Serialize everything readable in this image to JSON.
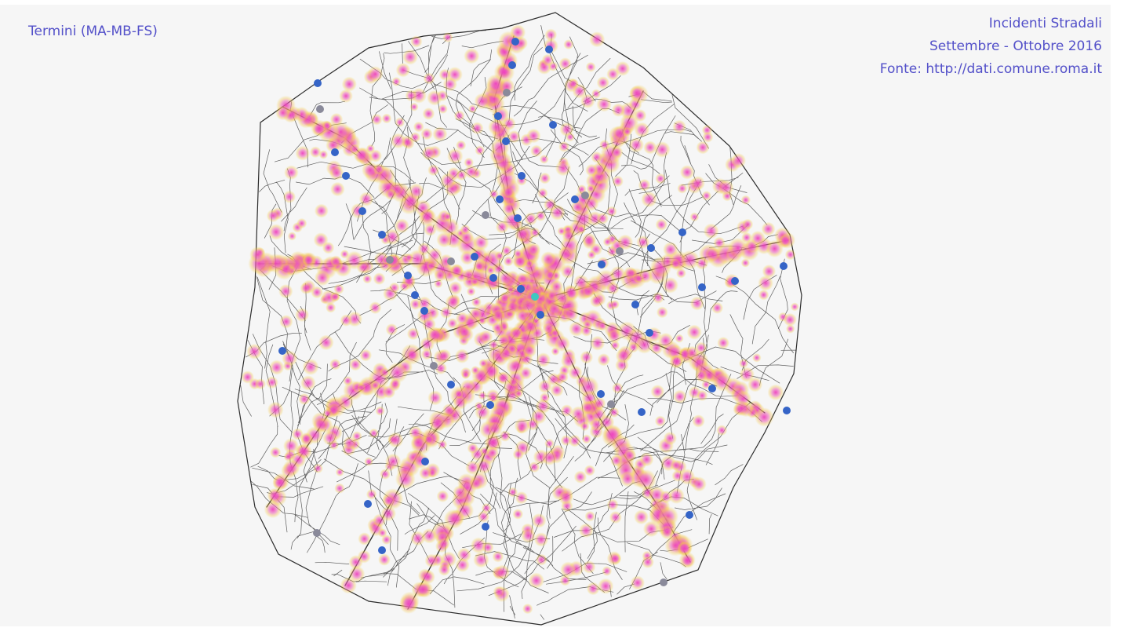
{
  "selected_station_label": "Termini (MA-MB-FS)",
  "title": {
    "line1": "Incidenti Stradali",
    "line2": "Settembre - Ottobre 2016",
    "source": "Fonte: http://dati.comune.roma.it"
  },
  "colors": {
    "background": "#f6f6f6",
    "text": "#5350c9",
    "roads": "#2b2b2b",
    "accident_hot": "#ee3fc0",
    "accident_halo": "#f3c84a",
    "station": "#3564c7",
    "station_overlapped": "#8a8a9a",
    "selected_station": "#3ec8c0"
  }
}
